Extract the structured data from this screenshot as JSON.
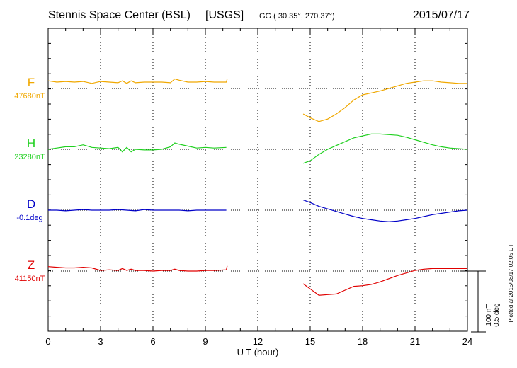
{
  "chart_data": {
    "type": "line",
    "header": {
      "station": "Stennis Space Center (BSL)",
      "agency": "[USGS]",
      "coords": "GG ( 30.35°, 270.37°)",
      "date": "2015/07/17"
    },
    "xlabel": "U T (hour)",
    "xlim": [
      0,
      24
    ],
    "xticks": [
      "0",
      "3",
      "6",
      "9",
      "12",
      "15",
      "18",
      "21",
      "24"
    ],
    "scale_bar": {
      "label1": "100 nT",
      "label2": "0.5 deg"
    },
    "plotted_note": "Plotted at 2015/08/17 02:05 UT",
    "colors": {
      "F": "#f0a800",
      "H": "#20d020",
      "D": "#0000c8",
      "Z": "#e00000"
    },
    "series": [
      {
        "name": "F",
        "baseline_label": "47680nT",
        "segments": [
          [
            [
              0.0,
              12
            ],
            [
              0.5,
              10
            ],
            [
              1.0,
              11
            ],
            [
              1.5,
              10
            ],
            [
              2.0,
              11
            ],
            [
              2.5,
              8
            ],
            [
              3.0,
              11
            ],
            [
              3.5,
              10
            ],
            [
              4.0,
              9
            ],
            [
              4.25,
              12
            ],
            [
              4.5,
              8
            ],
            [
              4.75,
              12
            ],
            [
              5.0,
              9
            ],
            [
              5.5,
              10
            ],
            [
              6.0,
              10
            ],
            [
              6.5,
              10
            ],
            [
              7.0,
              9
            ],
            [
              7.25,
              15
            ],
            [
              7.5,
              13
            ],
            [
              8.0,
              10
            ],
            [
              8.5,
              10
            ],
            [
              9.0,
              11
            ],
            [
              9.5,
              10
            ],
            [
              10.2,
              10
            ],
            [
              10.25,
              15
            ]
          ],
          [
            [
              14.6,
              -40
            ],
            [
              15.0,
              -46
            ],
            [
              15.5,
              -52
            ],
            [
              16.0,
              -48
            ],
            [
              16.5,
              -40
            ],
            [
              17.0,
              -30
            ],
            [
              17.5,
              -18
            ],
            [
              18.0,
              -10
            ],
            [
              18.5,
              -7
            ],
            [
              19.0,
              -4
            ],
            [
              19.5,
              0
            ],
            [
              20.0,
              4
            ],
            [
              20.5,
              8
            ],
            [
              21.0,
              10
            ],
            [
              21.5,
              12
            ],
            [
              22.0,
              12
            ],
            [
              22.5,
              10
            ],
            [
              23.0,
              9
            ],
            [
              23.5,
              8
            ],
            [
              24.0,
              8
            ]
          ]
        ]
      },
      {
        "name": "H",
        "baseline_label": "23280nT",
        "segments": [
          [
            [
              0.0,
              0
            ],
            [
              0.5,
              2
            ],
            [
              1.0,
              4
            ],
            [
              1.5,
              4
            ],
            [
              2.0,
              7
            ],
            [
              2.5,
              3
            ],
            [
              3.0,
              2
            ],
            [
              3.5,
              1
            ],
            [
              4.0,
              3
            ],
            [
              4.25,
              -4
            ],
            [
              4.5,
              3
            ],
            [
              4.75,
              -4
            ],
            [
              5.0,
              0
            ],
            [
              5.5,
              -1
            ],
            [
              6.0,
              -1
            ],
            [
              6.5,
              0
            ],
            [
              7.0,
              4
            ],
            [
              7.25,
              10
            ],
            [
              7.5,
              8
            ],
            [
              8.0,
              5
            ],
            [
              8.5,
              2
            ],
            [
              9.0,
              3
            ],
            [
              9.5,
              2
            ],
            [
              10.2,
              3
            ]
          ],
          [
            [
              14.6,
              -22
            ],
            [
              15.0,
              -18
            ],
            [
              15.5,
              -8
            ],
            [
              16.0,
              0
            ],
            [
              16.5,
              6
            ],
            [
              17.0,
              12
            ],
            [
              17.5,
              18
            ],
            [
              18.0,
              21
            ],
            [
              18.5,
              24
            ],
            [
              19.0,
              24
            ],
            [
              19.5,
              23
            ],
            [
              20.0,
              22
            ],
            [
              20.5,
              19
            ],
            [
              21.0,
              15
            ],
            [
              21.5,
              11
            ],
            [
              22.0,
              7
            ],
            [
              22.5,
              4
            ],
            [
              23.0,
              2
            ],
            [
              23.5,
              1
            ],
            [
              24.0,
              0
            ]
          ]
        ]
      },
      {
        "name": "D",
        "baseline_label": "-0.1deg",
        "segments": [
          [
            [
              0.0,
              0
            ],
            [
              0.5,
              0
            ],
            [
              1.0,
              -1
            ],
            [
              1.5,
              0
            ],
            [
              2.0,
              1
            ],
            [
              2.5,
              0
            ],
            [
              3.0,
              0
            ],
            [
              3.5,
              0
            ],
            [
              4.0,
              1
            ],
            [
              4.5,
              0
            ],
            [
              5.0,
              -1
            ],
            [
              5.5,
              1
            ],
            [
              6.0,
              0
            ],
            [
              6.5,
              0
            ],
            [
              7.0,
              0
            ],
            [
              7.5,
              0
            ],
            [
              8.0,
              -1
            ],
            [
              8.5,
              0
            ],
            [
              9.0,
              0
            ],
            [
              9.5,
              0
            ],
            [
              10.2,
              0
            ]
          ],
          [
            [
              14.6,
              16
            ],
            [
              15.0,
              12
            ],
            [
              15.5,
              6
            ],
            [
              16.0,
              2
            ],
            [
              16.5,
              -2
            ],
            [
              17.0,
              -6
            ],
            [
              17.5,
              -10
            ],
            [
              18.0,
              -13
            ],
            [
              18.5,
              -15
            ],
            [
              19.0,
              -17
            ],
            [
              19.5,
              -18
            ],
            [
              20.0,
              -17
            ],
            [
              20.5,
              -15
            ],
            [
              21.0,
              -13
            ],
            [
              21.5,
              -10
            ],
            [
              22.0,
              -7
            ],
            [
              22.5,
              -5
            ],
            [
              23.0,
              -3
            ],
            [
              23.5,
              -1
            ],
            [
              24.0,
              0
            ]
          ]
        ]
      },
      {
        "name": "Z",
        "baseline_label": "41150nT",
        "segments": [
          [
            [
              0.0,
              7
            ],
            [
              0.5,
              6
            ],
            [
              1.0,
              5
            ],
            [
              1.5,
              5
            ],
            [
              2.0,
              6
            ],
            [
              2.5,
              5
            ],
            [
              3.0,
              1
            ],
            [
              3.5,
              2
            ],
            [
              4.0,
              1
            ],
            [
              4.25,
              4
            ],
            [
              4.5,
              1
            ],
            [
              4.75,
              3
            ],
            [
              5.0,
              1
            ],
            [
              5.5,
              1
            ],
            [
              6.0,
              0
            ],
            [
              6.5,
              1
            ],
            [
              7.0,
              1
            ],
            [
              7.25,
              3
            ],
            [
              7.5,
              1
            ],
            [
              8.0,
              0
            ],
            [
              8.5,
              0
            ],
            [
              9.0,
              1
            ],
            [
              9.5,
              1
            ],
            [
              10.2,
              2
            ],
            [
              10.25,
              8
            ]
          ],
          [
            [
              14.6,
              -20
            ],
            [
              15.0,
              -28
            ],
            [
              15.5,
              -38
            ],
            [
              16.0,
              -37
            ],
            [
              16.5,
              -36
            ],
            [
              17.0,
              -30
            ],
            [
              17.5,
              -24
            ],
            [
              18.0,
              -23
            ],
            [
              18.5,
              -21
            ],
            [
              19.0,
              -17
            ],
            [
              19.5,
              -12
            ],
            [
              20.0,
              -7
            ],
            [
              20.5,
              -3
            ],
            [
              21.0,
              1
            ],
            [
              21.5,
              3
            ],
            [
              22.0,
              4
            ],
            [
              22.5,
              4
            ],
            [
              23.0,
              4
            ],
            [
              23.5,
              4
            ],
            [
              24.0,
              4
            ]
          ]
        ]
      }
    ]
  }
}
